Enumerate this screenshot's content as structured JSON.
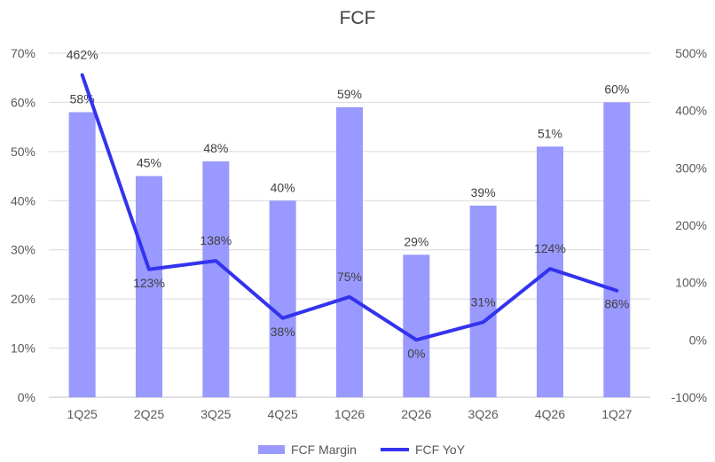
{
  "chart_data": {
    "type": "bar",
    "title": "FCF",
    "categories": [
      "1Q25",
      "2Q25",
      "3Q25",
      "4Q25",
      "1Q26",
      "2Q26",
      "3Q26",
      "4Q26",
      "1Q27"
    ],
    "series": [
      {
        "name": "FCF Margin",
        "type": "bar",
        "axis": "left",
        "values": [
          58,
          45,
          48,
          40,
          59,
          29,
          39,
          51,
          60
        ],
        "labels": [
          "58%",
          "45%",
          "48%",
          "40%",
          "59%",
          "29%",
          "39%",
          "51%",
          "60%"
        ],
        "color": "#9999ff"
      },
      {
        "name": "FCF YoY",
        "type": "line",
        "axis": "right",
        "values": [
          462,
          123,
          138,
          38,
          75,
          0,
          31,
          124,
          86
        ],
        "labels": [
          "462%",
          "123%",
          "138%",
          "38%",
          "75%",
          "0%",
          "31%",
          "124%",
          "86%"
        ],
        "color": "#3333ee"
      }
    ],
    "y_left": {
      "ylim": [
        0,
        70
      ],
      "ticks": [
        "0%",
        "10%",
        "20%",
        "30%",
        "40%",
        "50%",
        "60%",
        "70%"
      ]
    },
    "y_right": {
      "ylim": [
        -100,
        500
      ],
      "ticks": [
        "-100%",
        "0%",
        "100%",
        "200%",
        "300%",
        "400%",
        "500%"
      ]
    },
    "grid": true,
    "legend_position": "bottom"
  }
}
